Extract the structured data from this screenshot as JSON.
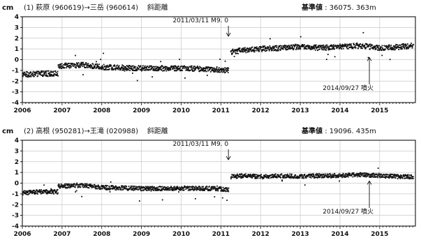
{
  "chart_data": [
    {
      "type": "scatter",
      "panel_number": "(1)",
      "route": "萩原 (960619)→三岳 (960614)",
      "component": "斜距離",
      "baseline_label": "基準値",
      "baseline_value": ": 36075. 363m",
      "ylabel": "cm",
      "ylim": [
        -4,
        4
      ],
      "yticks": [
        -4,
        -3,
        -2,
        -1,
        0,
        1,
        2,
        3,
        4
      ],
      "xlim": [
        2006.0,
        2015.9
      ],
      "xticks": [
        "2006",
        "2007",
        "2008",
        "2009",
        "2010",
        "2011",
        "2012",
        "2013",
        "2014",
        "2015"
      ],
      "grid": true,
      "series": [
        {
          "style": "dots",
          "segments": [
            {
              "x": [
                2006.0,
                2006.5,
                2006.9
              ],
              "y": [
                -1.4,
                -1.3,
                -1.3
              ]
            },
            {
              "x": [
                2006.9,
                2007.5,
                2008.0,
                2009.0,
                2010.0,
                2010.8,
                2011.2
              ],
              "y": [
                -0.6,
                -0.5,
                -0.7,
                -0.8,
                -0.8,
                -0.9,
                -1.0
              ]
            },
            {
              "x": [
                2011.25,
                2011.6,
                2012.0,
                2012.5,
                2013.0,
                2013.5,
                2014.0,
                2014.5,
                2015.0,
                2015.5,
                2015.85
              ],
              "y": [
                0.7,
                0.9,
                1.0,
                1.1,
                1.2,
                1.1,
                1.2,
                1.3,
                1.1,
                1.2,
                1.3
              ]
            }
          ],
          "noise": 0.25
        }
      ],
      "annotations": [
        {
          "text": "2011/03/11 M9. 0",
          "x": 2011.19,
          "arrow": "down"
        },
        {
          "text": "2014/09/27 噴火",
          "x": 2014.74,
          "arrow": "up"
        }
      ]
    },
    {
      "type": "scatter",
      "panel_number": "(2)",
      "route": "高根 (950281)→王滝 (020988)",
      "component": "斜距離",
      "baseline_label": "基準値",
      "baseline_value": ": 19096. 435m",
      "ylabel": "cm",
      "ylim": [
        -4,
        4
      ],
      "yticks": [
        -4,
        -3,
        -2,
        -1,
        0,
        1,
        2,
        3,
        4
      ],
      "xlim": [
        2006.0,
        2015.9
      ],
      "xticks": [
        "2006",
        "2007",
        "2008",
        "2009",
        "2010",
        "2011",
        "2012",
        "2013",
        "2014",
        "2015"
      ],
      "grid": true,
      "series": [
        {
          "style": "dots",
          "segments": [
            {
              "x": [
                2006.0,
                2006.5,
                2006.9
              ],
              "y": [
                -0.9,
                -0.8,
                -0.8
              ]
            },
            {
              "x": [
                2006.9,
                2007.5,
                2008.0,
                2009.0,
                2010.0,
                2010.8,
                2011.2
              ],
              "y": [
                -0.3,
                -0.2,
                -0.4,
                -0.5,
                -0.5,
                -0.5,
                -0.6
              ]
            },
            {
              "x": [
                2011.25,
                2011.6,
                2012.0,
                2012.5,
                2013.0,
                2013.5,
                2014.0,
                2014.5,
                2015.0,
                2015.5,
                2015.85
              ],
              "y": [
                0.6,
                0.7,
                0.6,
                0.7,
                0.6,
                0.7,
                0.7,
                0.8,
                0.7,
                0.6,
                0.6
              ]
            }
          ],
          "noise": 0.2
        }
      ],
      "annotations": [
        {
          "text": "2011/03/11 M9. 0",
          "x": 2011.19,
          "arrow": "down"
        },
        {
          "text": "2014/09/27 噴火",
          "x": 2014.74,
          "arrow": "up"
        }
      ]
    }
  ]
}
